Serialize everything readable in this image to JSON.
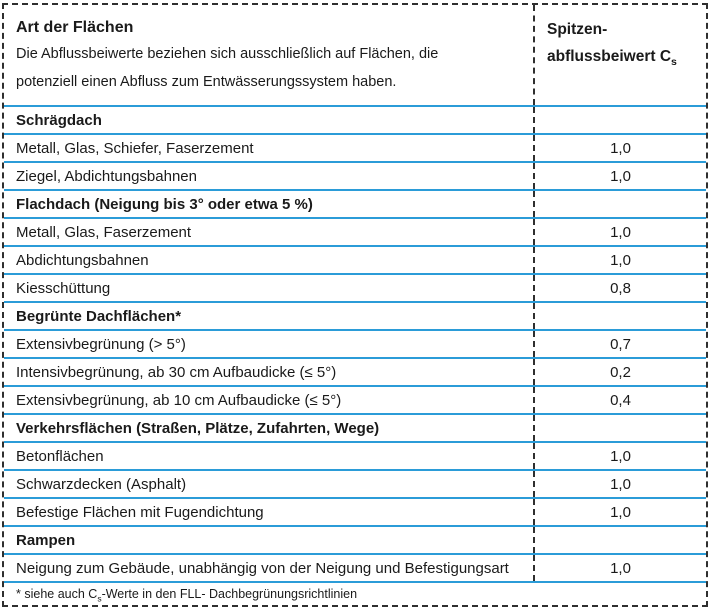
{
  "table": {
    "header": {
      "col1_title": "Art der Flächen",
      "col1_desc_line1": "Die Abflussbeiwerte beziehen sich ausschließlich auf Flächen, die",
      "col1_desc_line2": "potenziell einen Abfluss zum Entwässerungssystem haben.",
      "col2_line1": "Spitzen-",
      "col2_line2_prefix": "abflussbeiwert C",
      "col2_line2_sub": "s"
    },
    "rows": [
      {
        "type": "section",
        "label": "Schrägdach",
        "value": ""
      },
      {
        "type": "data",
        "label": "Metall, Glas, Schiefer, Faserzement",
        "value": "1,0"
      },
      {
        "type": "data",
        "label": "Ziegel, Abdichtungsbahnen",
        "value": "1,0"
      },
      {
        "type": "section",
        "label": "Flachdach (Neigung bis 3° oder etwa 5 %)",
        "value": ""
      },
      {
        "type": "data",
        "label": "Metall, Glas, Faserzement",
        "value": "1,0"
      },
      {
        "type": "data",
        "label": "Abdichtungsbahnen",
        "value": "1,0"
      },
      {
        "type": "data",
        "label": "Kiesschüttung",
        "value": "0,8"
      },
      {
        "type": "section",
        "label": "Begrünte Dachflächen*",
        "value": ""
      },
      {
        "type": "data",
        "label": "Extensivbegrünung (> 5°)",
        "value": "0,7"
      },
      {
        "type": "data",
        "label": "Intensivbegrünung, ab 30 cm Aufbaudicke (≤ 5°)",
        "value": "0,2"
      },
      {
        "type": "data",
        "label": "Extensivbegrünung, ab 10 cm Aufbaudicke (≤ 5°)",
        "value": "0,4"
      },
      {
        "type": "section",
        "label": "Verkehrsflächen (Straßen, Plätze, Zufahrten, Wege)",
        "value": ""
      },
      {
        "type": "data",
        "label": "Betonflächen",
        "value": "1,0"
      },
      {
        "type": "data",
        "label": "Schwarzdecken (Asphalt)",
        "value": "1,0"
      },
      {
        "type": "data",
        "label": "Befestige Flächen mit Fugendichtung",
        "value": "1,0"
      },
      {
        "type": "section",
        "label": "Rampen",
        "value": ""
      },
      {
        "type": "data",
        "label": "Neigung zum Gebäude, unabhängig von der Neigung und Befestigungsart",
        "value": "1,0"
      }
    ],
    "footnote": {
      "prefix": "* siehe auch C",
      "sub": "s",
      "suffix": "-Werte in den FLL- Dachbegrünungsrichtlinien"
    },
    "colors": {
      "row_separator_blue": "#2b9cd8",
      "dashed_border_black": "#2f2f2f",
      "text": "#1a1a1a"
    }
  }
}
